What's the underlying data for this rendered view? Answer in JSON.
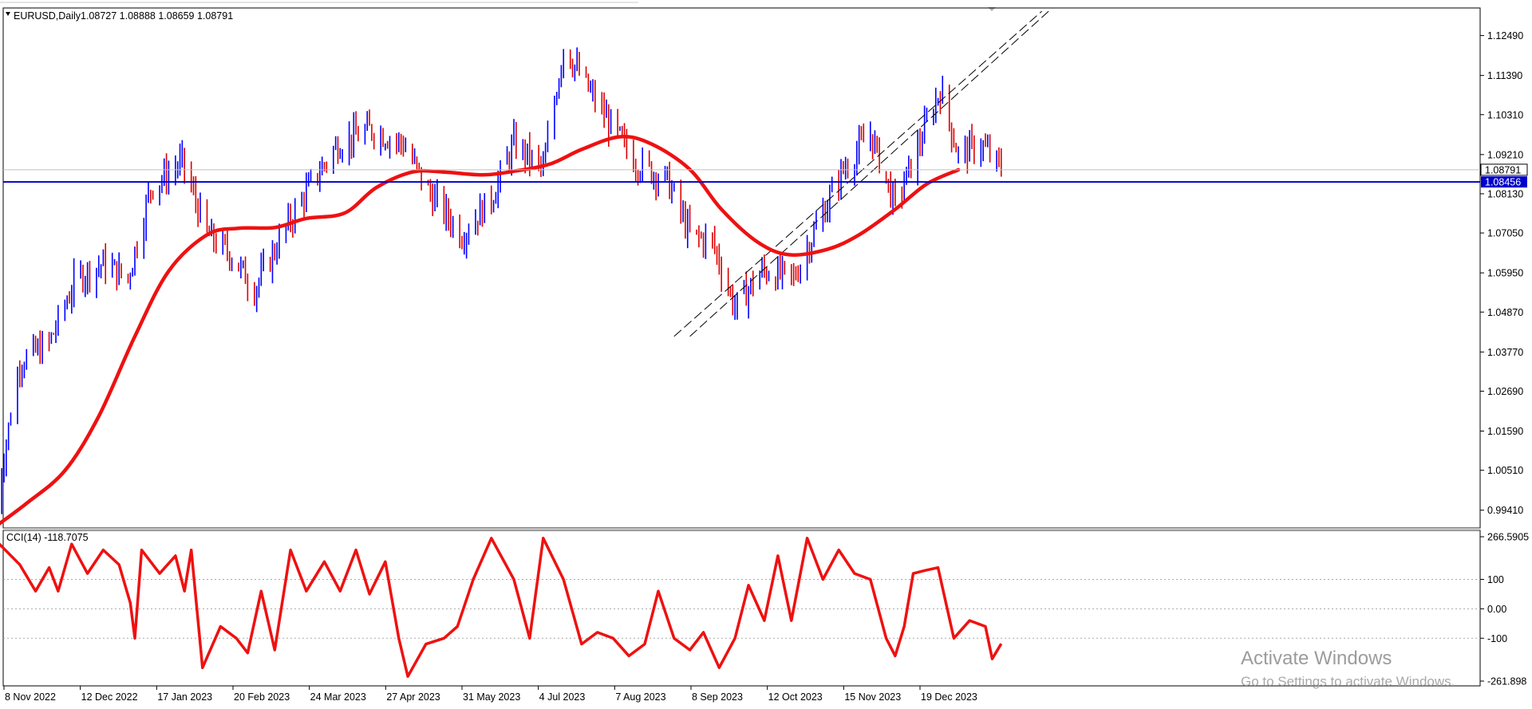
{
  "header": {
    "symbol": "EURUSD,Daily",
    "ohlc": "1.08727 1.08888 1.08659 1.08791"
  },
  "indicator": {
    "label": "CCI(14) -118.7075",
    "scale_max": "266.5905",
    "scale_min": "-261.898",
    "levels": [
      "100",
      "0.00",
      "-100"
    ]
  },
  "watermark": {
    "line1": "Activate Windows",
    "line2": "Go to Settings to activate Windows."
  },
  "colors": {
    "up_candle": "#0000ff",
    "down_candle": "#dd0000",
    "moving_average": "#ee1111",
    "cci_line": "#ee1111",
    "horizontal_line": "#0000cc",
    "current_price_tag": "#000000",
    "level_tag": "#0000cc"
  },
  "chart_data": [
    {
      "type": "candlestick",
      "series_name": "EURUSD,Daily",
      "y_ticks": [
        "1.12490",
        "1.11390",
        "1.10310",
        "1.09210",
        "1.08130",
        "1.07050",
        "1.05950",
        "1.04870",
        "1.03770",
        "1.02690",
        "1.01590",
        "1.00510",
        "0.99410"
      ],
      "ylim": [
        0.9892,
        1.1325
      ],
      "x_ticks": [
        "8 Nov 2022",
        "12 Dec 2022",
        "17 Jan 2023",
        "20 Feb 2023",
        "24 Mar 2023",
        "27 Apr 2023",
        "31 May 2023",
        "4 Jul 2023",
        "7 Aug 2023",
        "8 Sep 2023",
        "12 Oct 2023",
        "15 Nov 2023",
        "19 Dec 2023"
      ],
      "current_price": "1.08791",
      "horizontal_level": "1.08456",
      "moving_average": [
        {
          "date": "2022-11-04",
          "value": 0.9895
        },
        {
          "date": "2022-11-18",
          "value": 0.996
        },
        {
          "date": "2022-12-05",
          "value": 1.005
        },
        {
          "date": "2022-12-20",
          "value": 1.02
        },
        {
          "date": "2023-01-05",
          "value": 1.042
        },
        {
          "date": "2023-01-20",
          "value": 1.06
        },
        {
          "date": "2023-02-06",
          "value": 1.07
        },
        {
          "date": "2023-02-20",
          "value": 1.0718
        },
        {
          "date": "2023-03-08",
          "value": 1.072
        },
        {
          "date": "2023-03-22",
          "value": 1.0745
        },
        {
          "date": "2023-04-08",
          "value": 1.076
        },
        {
          "date": "2023-04-22",
          "value": 1.083
        },
        {
          "date": "2023-05-08",
          "value": 1.0873
        },
        {
          "date": "2023-05-22",
          "value": 1.0873
        },
        {
          "date": "2023-06-08",
          "value": 1.0865
        },
        {
          "date": "2023-06-22",
          "value": 1.0875
        },
        {
          "date": "2023-07-08",
          "value": 1.0895
        },
        {
          "date": "2023-07-22",
          "value": 1.0935
        },
        {
          "date": "2023-08-08",
          "value": 1.097
        },
        {
          "date": "2023-08-22",
          "value": 1.095
        },
        {
          "date": "2023-09-08",
          "value": 1.088
        },
        {
          "date": "2023-09-22",
          "value": 1.077
        },
        {
          "date": "2023-10-08",
          "value": 1.068
        },
        {
          "date": "2023-10-22",
          "value": 1.0645
        },
        {
          "date": "2023-11-08",
          "value": 1.066
        },
        {
          "date": "2023-11-22",
          "value": 1.07
        },
        {
          "date": "2023-12-08",
          "value": 1.077
        },
        {
          "date": "2023-12-22",
          "value": 1.084
        },
        {
          "date": "2024-01-05",
          "value": 1.0879
        }
      ],
      "trendlines": [
        {
          "start": {
            "date": "2023-09-01",
            "value": 1.042
          },
          "end": {
            "date": "2024-02-11",
            "value": 1.1316
          }
        },
        {
          "start": {
            "date": "2023-09-08",
            "value": 1.042
          },
          "end": {
            "date": "2024-02-14",
            "value": 1.1316
          }
        }
      ],
      "price_path": [
        {
          "date": "2022-11-04",
          "value": 0.995
        },
        {
          "date": "2022-11-15",
          "value": 1.035
        },
        {
          "date": "2022-11-28",
          "value": 1.04
        },
        {
          "date": "2022-12-10",
          "value": 1.058
        },
        {
          "date": "2022-12-22",
          "value": 1.062
        },
        {
          "date": "2023-01-02",
          "value": 1.058
        },
        {
          "date": "2023-01-12",
          "value": 1.083
        },
        {
          "date": "2023-01-26",
          "value": 1.09
        },
        {
          "date": "2023-02-06",
          "value": 1.07
        },
        {
          "date": "2023-02-16",
          "value": 1.065
        },
        {
          "date": "2023-02-27",
          "value": 1.055
        },
        {
          "date": "2023-03-14",
          "value": 1.073
        },
        {
          "date": "2023-03-25",
          "value": 1.085
        },
        {
          "date": "2023-04-05",
          "value": 1.095
        },
        {
          "date": "2023-04-20",
          "value": 1.099
        },
        {
          "date": "2023-05-04",
          "value": 1.095
        },
        {
          "date": "2023-05-15",
          "value": 1.082
        },
        {
          "date": "2023-05-30",
          "value": 1.07
        },
        {
          "date": "2023-06-12",
          "value": 1.08
        },
        {
          "date": "2023-06-22",
          "value": 1.095
        },
        {
          "date": "2023-07-05",
          "value": 1.088
        },
        {
          "date": "2023-07-14",
          "value": 1.122
        },
        {
          "date": "2023-07-25",
          "value": 1.11
        },
        {
          "date": "2023-08-04",
          "value": 1.1
        },
        {
          "date": "2023-08-15",
          "value": 1.09
        },
        {
          "date": "2023-08-29",
          "value": 1.085
        },
        {
          "date": "2023-09-08",
          "value": 1.07
        },
        {
          "date": "2023-09-18",
          "value": 1.068
        },
        {
          "date": "2023-09-28",
          "value": 1.05
        },
        {
          "date": "2023-10-10",
          "value": 1.06
        },
        {
          "date": "2023-10-24",
          "value": 1.058
        },
        {
          "date": "2023-11-03",
          "value": 1.072
        },
        {
          "date": "2023-11-14",
          "value": 1.087
        },
        {
          "date": "2023-11-27",
          "value": 1.098
        },
        {
          "date": "2023-12-08",
          "value": 1.078
        },
        {
          "date": "2023-12-18",
          "value": 1.094
        },
        {
          "date": "2023-12-28",
          "value": 1.11
        },
        {
          "date": "2024-01-05",
          "value": 1.092
        },
        {
          "date": "2024-01-15",
          "value": 1.095
        },
        {
          "date": "2024-01-24",
          "value": 1.0879
        }
      ]
    },
    {
      "type": "line",
      "series_name": "CCI(14)",
      "ylim": [
        -261.898,
        266.5905
      ],
      "levels": [
        100,
        0,
        -100
      ],
      "points": [
        {
          "date": "2022-11-03",
          "value": 130
        },
        {
          "date": "2022-11-06",
          "value": 220
        },
        {
          "date": "2022-11-15",
          "value": 150
        },
        {
          "date": "2022-11-22",
          "value": 60
        },
        {
          "date": "2022-11-28",
          "value": 140
        },
        {
          "date": "2022-12-02",
          "value": 60
        },
        {
          "date": "2022-12-08",
          "value": 220
        },
        {
          "date": "2022-12-15",
          "value": 120
        },
        {
          "date": "2022-12-22",
          "value": 200
        },
        {
          "date": "2022-12-29",
          "value": 150
        },
        {
          "date": "2023-01-03",
          "value": 20
        },
        {
          "date": "2023-01-05",
          "value": -100
        },
        {
          "date": "2023-01-08",
          "value": 200
        },
        {
          "date": "2023-01-16",
          "value": 120
        },
        {
          "date": "2023-01-23",
          "value": 180
        },
        {
          "date": "2023-01-27",
          "value": 60
        },
        {
          "date": "2023-01-30",
          "value": 200
        },
        {
          "date": "2023-02-04",
          "value": -200
        },
        {
          "date": "2023-02-12",
          "value": -60
        },
        {
          "date": "2023-02-19",
          "value": -100
        },
        {
          "date": "2023-02-24",
          "value": -150
        },
        {
          "date": "2023-03-02",
          "value": 60
        },
        {
          "date": "2023-03-08",
          "value": -140
        },
        {
          "date": "2023-03-15",
          "value": 200
        },
        {
          "date": "2023-03-22",
          "value": 60
        },
        {
          "date": "2023-03-30",
          "value": 160
        },
        {
          "date": "2023-04-06",
          "value": 60
        },
        {
          "date": "2023-04-13",
          "value": 200
        },
        {
          "date": "2023-04-19",
          "value": 50
        },
        {
          "date": "2023-04-26",
          "value": 160
        },
        {
          "date": "2023-05-02",
          "value": -100
        },
        {
          "date": "2023-05-06",
          "value": -230
        },
        {
          "date": "2023-05-14",
          "value": -120
        },
        {
          "date": "2023-05-22",
          "value": -100
        },
        {
          "date": "2023-05-28",
          "value": -60
        },
        {
          "date": "2023-06-04",
          "value": 100
        },
        {
          "date": "2023-06-12",
          "value": 240
        },
        {
          "date": "2023-06-22",
          "value": 100
        },
        {
          "date": "2023-06-29",
          "value": -100
        },
        {
          "date": "2023-07-05",
          "value": 240
        },
        {
          "date": "2023-07-14",
          "value": 100
        },
        {
          "date": "2023-07-22",
          "value": -120
        },
        {
          "date": "2023-07-29",
          "value": -80
        },
        {
          "date": "2023-08-05",
          "value": -100
        },
        {
          "date": "2023-08-12",
          "value": -160
        },
        {
          "date": "2023-08-19",
          "value": -120
        },
        {
          "date": "2023-08-25",
          "value": 60
        },
        {
          "date": "2023-09-01",
          "value": -100
        },
        {
          "date": "2023-09-08",
          "value": -140
        },
        {
          "date": "2023-09-14",
          "value": -80
        },
        {
          "date": "2023-09-21",
          "value": -200
        },
        {
          "date": "2023-09-28",
          "value": -100
        },
        {
          "date": "2023-10-04",
          "value": 80
        },
        {
          "date": "2023-10-11",
          "value": -40
        },
        {
          "date": "2023-10-17",
          "value": 180
        },
        {
          "date": "2023-10-23",
          "value": -40
        },
        {
          "date": "2023-10-30",
          "value": 240
        },
        {
          "date": "2023-11-06",
          "value": 100
        },
        {
          "date": "2023-11-13",
          "value": 200
        },
        {
          "date": "2023-11-20",
          "value": 120
        },
        {
          "date": "2023-11-27",
          "value": 100
        },
        {
          "date": "2023-12-04",
          "value": -100
        },
        {
          "date": "2023-12-08",
          "value": -160
        },
        {
          "date": "2023-12-12",
          "value": -60
        },
        {
          "date": "2023-12-16",
          "value": 120
        },
        {
          "date": "2023-12-21",
          "value": 130
        },
        {
          "date": "2023-12-27",
          "value": 140
        },
        {
          "date": "2024-01-03",
          "value": -100
        },
        {
          "date": "2024-01-10",
          "value": -40
        },
        {
          "date": "2024-01-17",
          "value": -60
        },
        {
          "date": "2024-01-20",
          "value": -170
        },
        {
          "date": "2024-01-24",
          "value": -118.7075
        }
      ]
    }
  ]
}
